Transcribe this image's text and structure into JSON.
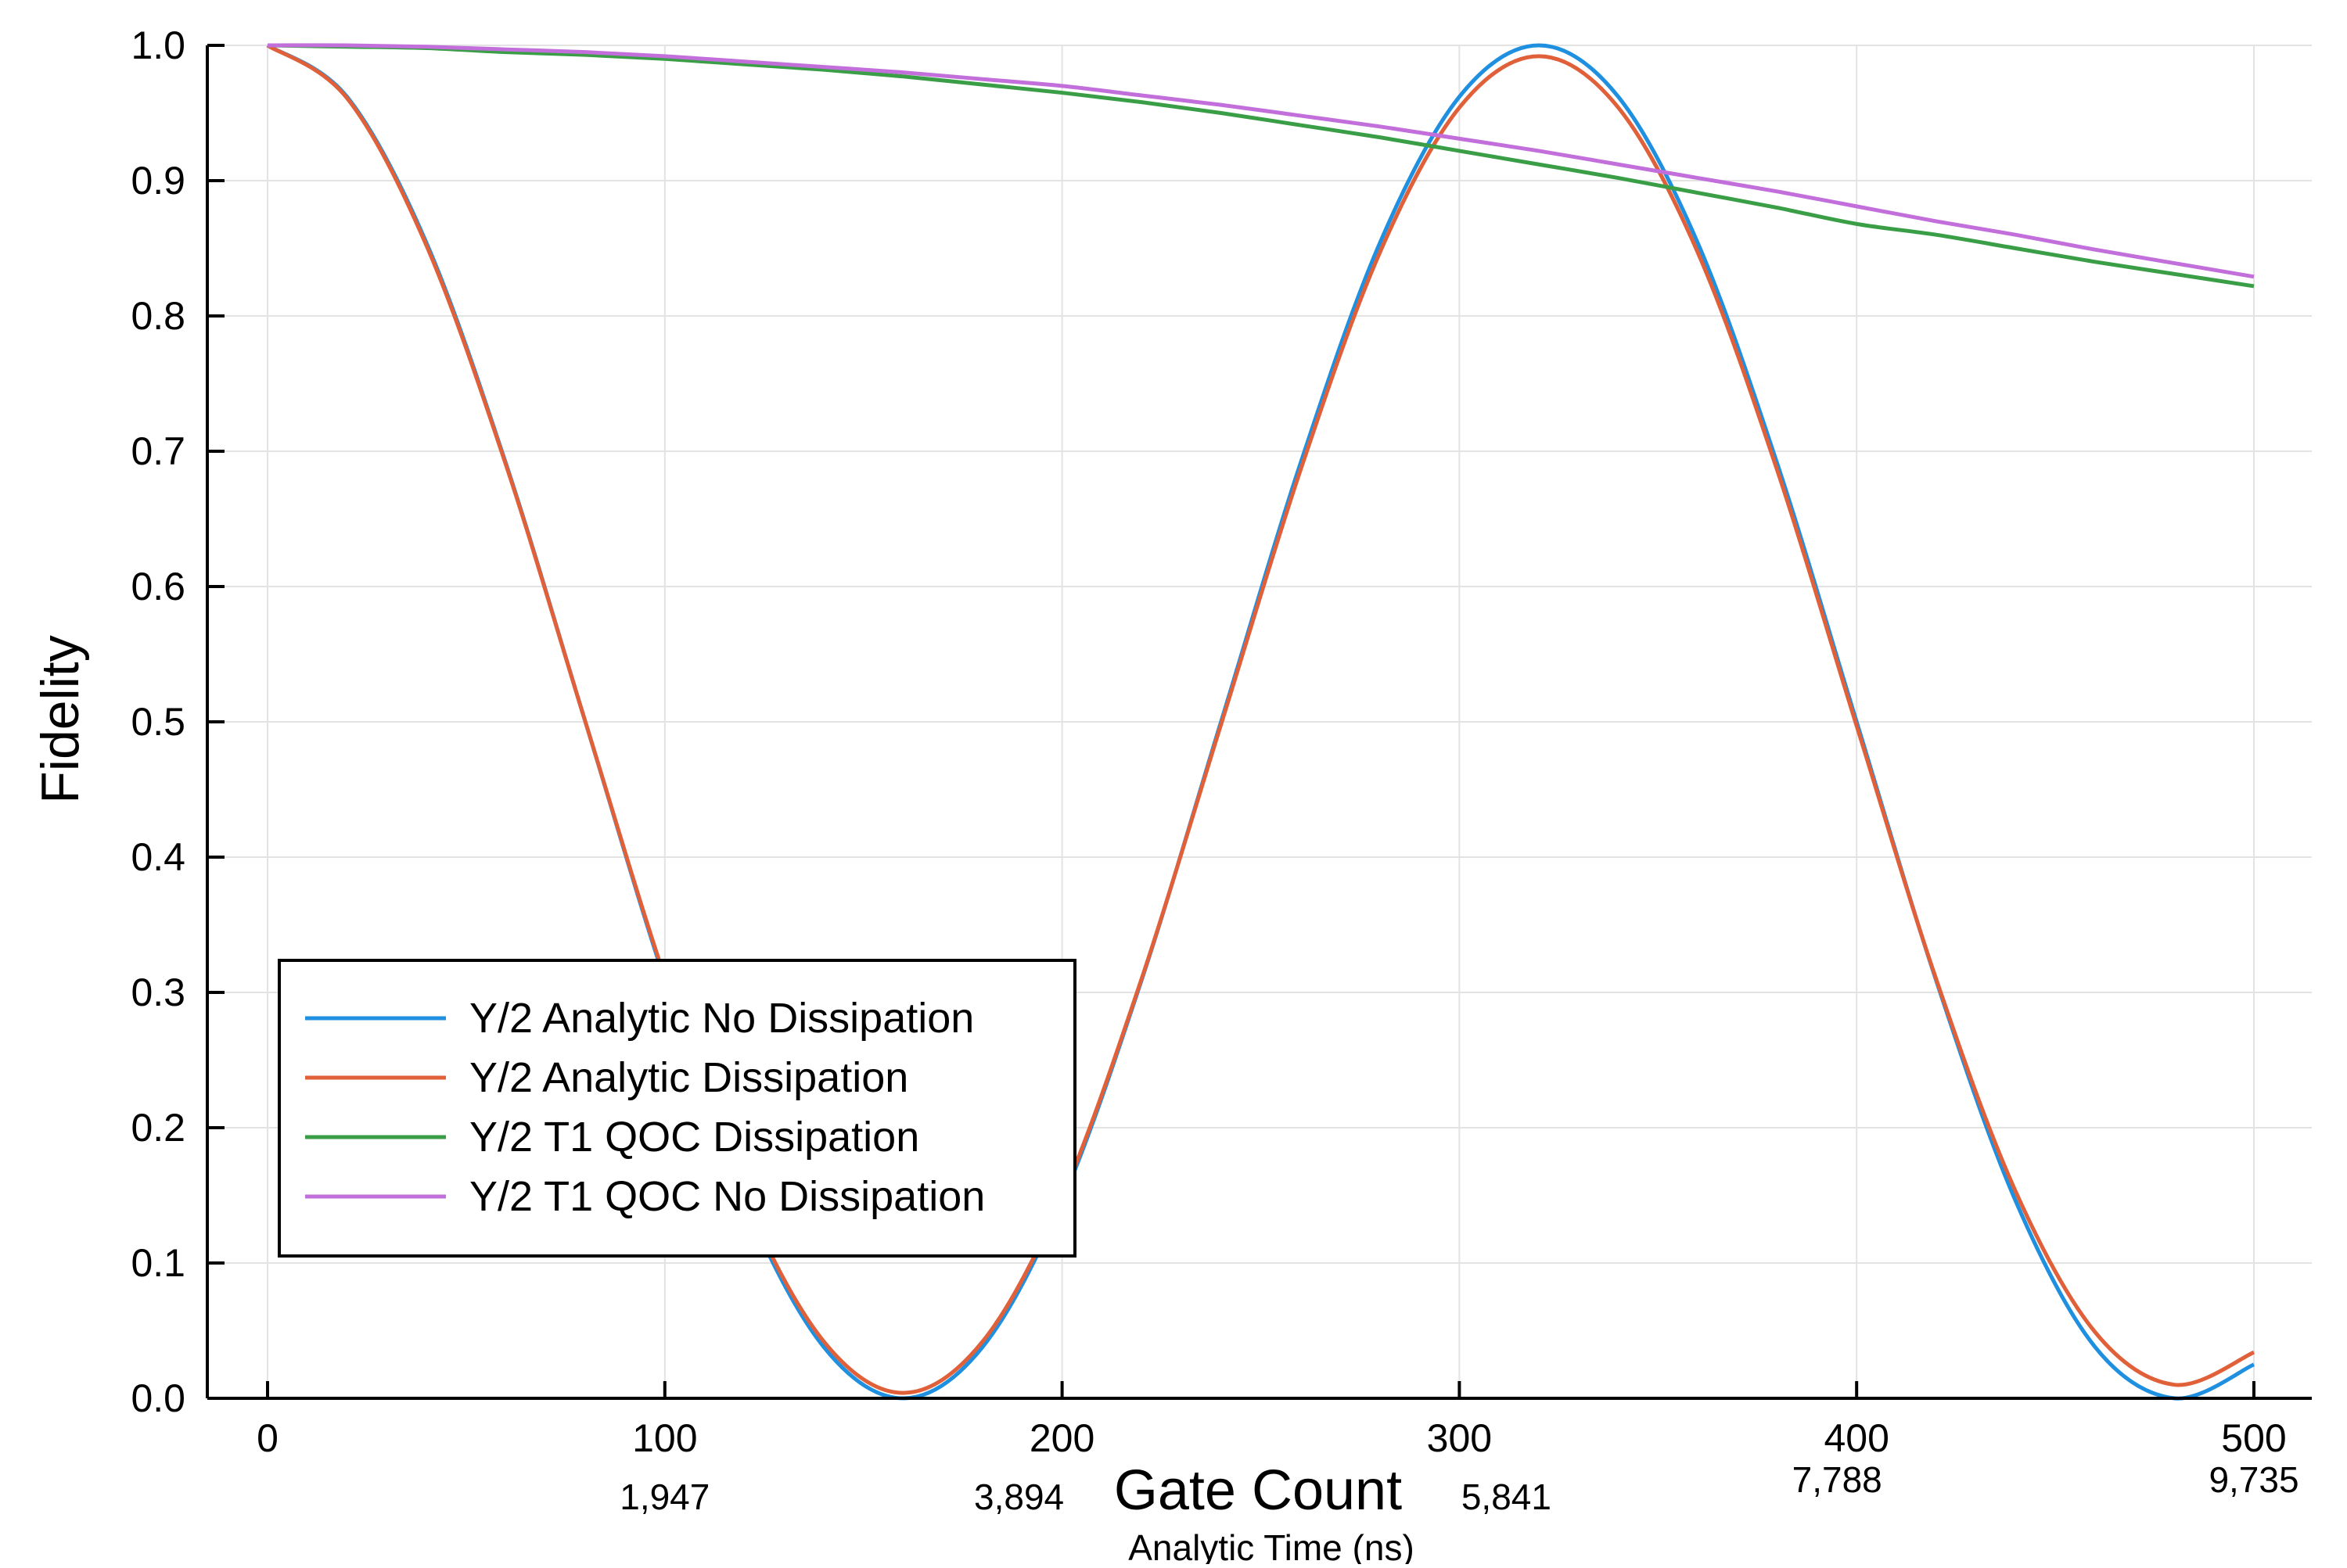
{
  "chart_data": {
    "type": "line",
    "title": "",
    "xlabel": "Gate Count",
    "ylabel": "Fidelity",
    "secondary_xlabel": "Analytic Time (ns)",
    "xlim": [
      0,
      500
    ],
    "ylim": [
      0.0,
      1.0
    ],
    "grid": true,
    "legend_position": "bottom-left",
    "x_ticks": [
      "0",
      "100",
      "200",
      "300",
      "400",
      "500"
    ],
    "x_tick_values": [
      0,
      100,
      200,
      300,
      400,
      500
    ],
    "y_ticks": [
      "0.0",
      "0.1",
      "0.2",
      "0.3",
      "0.4",
      "0.5",
      "0.6",
      "0.7",
      "0.8",
      "0.9",
      "1.0"
    ],
    "y_tick_values": [
      0.0,
      0.1,
      0.2,
      0.3,
      0.4,
      0.5,
      0.6,
      0.7,
      0.8,
      0.9,
      1.0
    ],
    "secondary_x_ticks": [
      "1,947",
      "3,894",
      "5,841",
      "7,788",
      "9,735"
    ],
    "secondary_x_tick_values": [
      100,
      200,
      300,
      400,
      500
    ],
    "x": [
      0,
      20,
      40,
      60,
      80,
      100,
      120,
      140,
      160,
      180,
      200,
      220,
      240,
      260,
      280,
      300,
      320,
      340,
      360,
      380,
      400,
      420,
      440,
      460,
      480,
      500
    ],
    "series": [
      {
        "name": "Y/2 Analytic No Dissipation",
        "color": "#1f8fe0",
        "values": [
          1.0,
          0.962,
          0.854,
          0.691,
          0.5,
          0.309,
          0.146,
          0.038,
          0.0,
          0.038,
          0.146,
          0.309,
          0.5,
          0.691,
          0.854,
          0.962,
          1.0,
          0.962,
          0.854,
          0.691,
          0.5,
          0.309,
          0.146,
          0.038,
          0.0,
          0.025
        ]
      },
      {
        "name": "Y/2 Analytic Dissipation",
        "color": "#e0603a",
        "values": [
          1.0,
          0.961,
          0.852,
          0.69,
          0.5,
          0.311,
          0.149,
          0.042,
          0.004,
          0.042,
          0.149,
          0.31,
          0.498,
          0.686,
          0.847,
          0.954,
          0.992,
          0.954,
          0.847,
          0.686,
          0.497,
          0.31,
          0.153,
          0.049,
          0.01,
          0.034
        ]
      },
      {
        "name": "Y/2 T1 QOC Dissipation",
        "color": "#3a9e46",
        "values": [
          1.0,
          0.999,
          0.998,
          0.995,
          0.993,
          0.99,
          0.986,
          0.982,
          0.977,
          0.971,
          0.965,
          0.958,
          0.95,
          0.941,
          0.932,
          0.922,
          0.912,
          0.902,
          0.891,
          0.88,
          0.868,
          0.86,
          0.85,
          0.84,
          0.831,
          0.822
        ]
      },
      {
        "name": "Y/2 T1 QOC No Dissipation",
        "color": "#c26fdb",
        "values": [
          1.0,
          1.0,
          0.999,
          0.997,
          0.995,
          0.992,
          0.988,
          0.984,
          0.98,
          0.975,
          0.97,
          0.963,
          0.956,
          0.948,
          0.94,
          0.931,
          0.922,
          0.912,
          0.902,
          0.892,
          0.881,
          0.87,
          0.86,
          0.849,
          0.839,
          0.829
        ]
      }
    ]
  }
}
